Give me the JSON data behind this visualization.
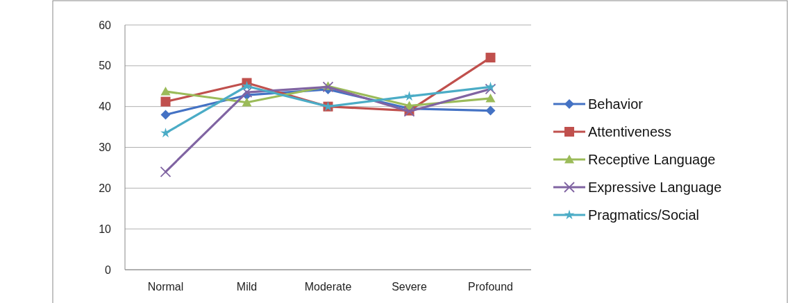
{
  "chart_data": {
    "type": "line",
    "categories": [
      "Normal",
      "Mild",
      "Moderate",
      "Severe",
      "Profound"
    ],
    "ylim": [
      0,
      60
    ],
    "yticks": [
      0,
      10,
      20,
      30,
      40,
      50,
      60
    ],
    "grid": "y",
    "legend": "right",
    "series": [
      {
        "name": "Behavior",
        "color": "#4472c4",
        "marker": "diamond",
        "values": [
          38,
          42.8,
          44.2,
          39.5,
          39
        ]
      },
      {
        "name": "Attentiveness",
        "color": "#c0504d",
        "marker": "square",
        "values": [
          41.2,
          45.8,
          40,
          39,
          52
        ]
      },
      {
        "name": "Receptive Language",
        "color": "#9bbb59",
        "marker": "triangle",
        "values": [
          43.7,
          41,
          45,
          40.2,
          42
        ]
      },
      {
        "name": "Expressive Language",
        "color": "#8064a2",
        "marker": "cross",
        "values": [
          24,
          43.5,
          44.8,
          38.8,
          44.3
        ]
      },
      {
        "name": "Pragmatics/Social",
        "color": "#4bacc6",
        "marker": "star",
        "values": [
          33.5,
          45,
          40,
          42.5,
          44.8
        ]
      }
    ]
  }
}
